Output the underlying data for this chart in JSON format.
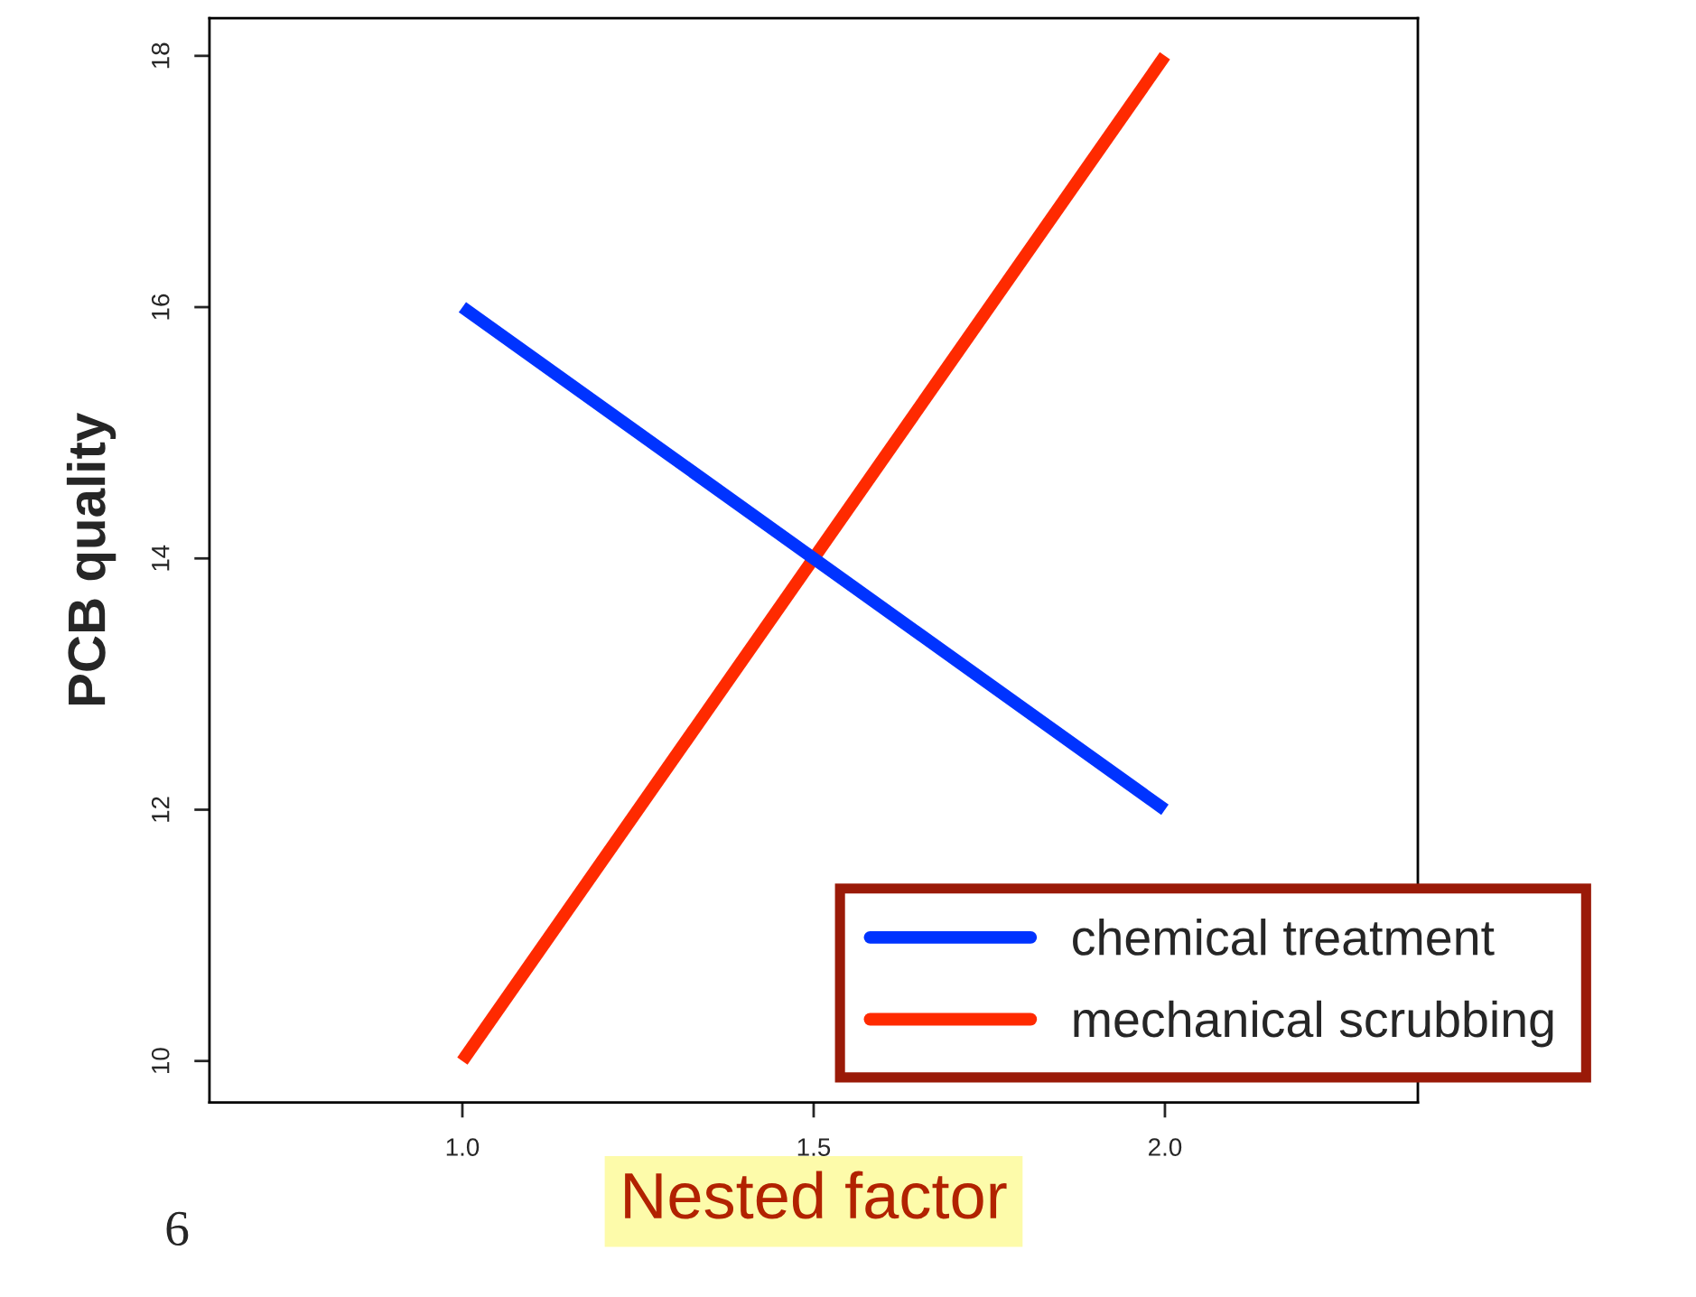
{
  "chart_data": {
    "type": "line",
    "xlabel": "Nested factor",
    "ylabel": "PCB quality",
    "x": [
      1.0,
      2.0
    ],
    "series": [
      {
        "name": "chemical treatment",
        "color": "#0033ff",
        "values": [
          16,
          12
        ]
      },
      {
        "name": "mechanical scrubbing",
        "color": "#ff2a00",
        "values": [
          10,
          18
        ]
      }
    ],
    "xlim": [
      0.64,
      2.36
    ],
    "xticks": [
      {
        "value": 1,
        "label": "1.0"
      },
      1.5,
      {
        "value": 2,
        "label": "2.0"
      }
    ],
    "ylim": [
      9.67,
      18.3
    ],
    "yticks": [
      10,
      12,
      14,
      16,
      18
    ],
    "grid": false,
    "legend": "bottom right",
    "marker": "none",
    "line_style": "solid",
    "annotations": [
      "6"
    ]
  }
}
